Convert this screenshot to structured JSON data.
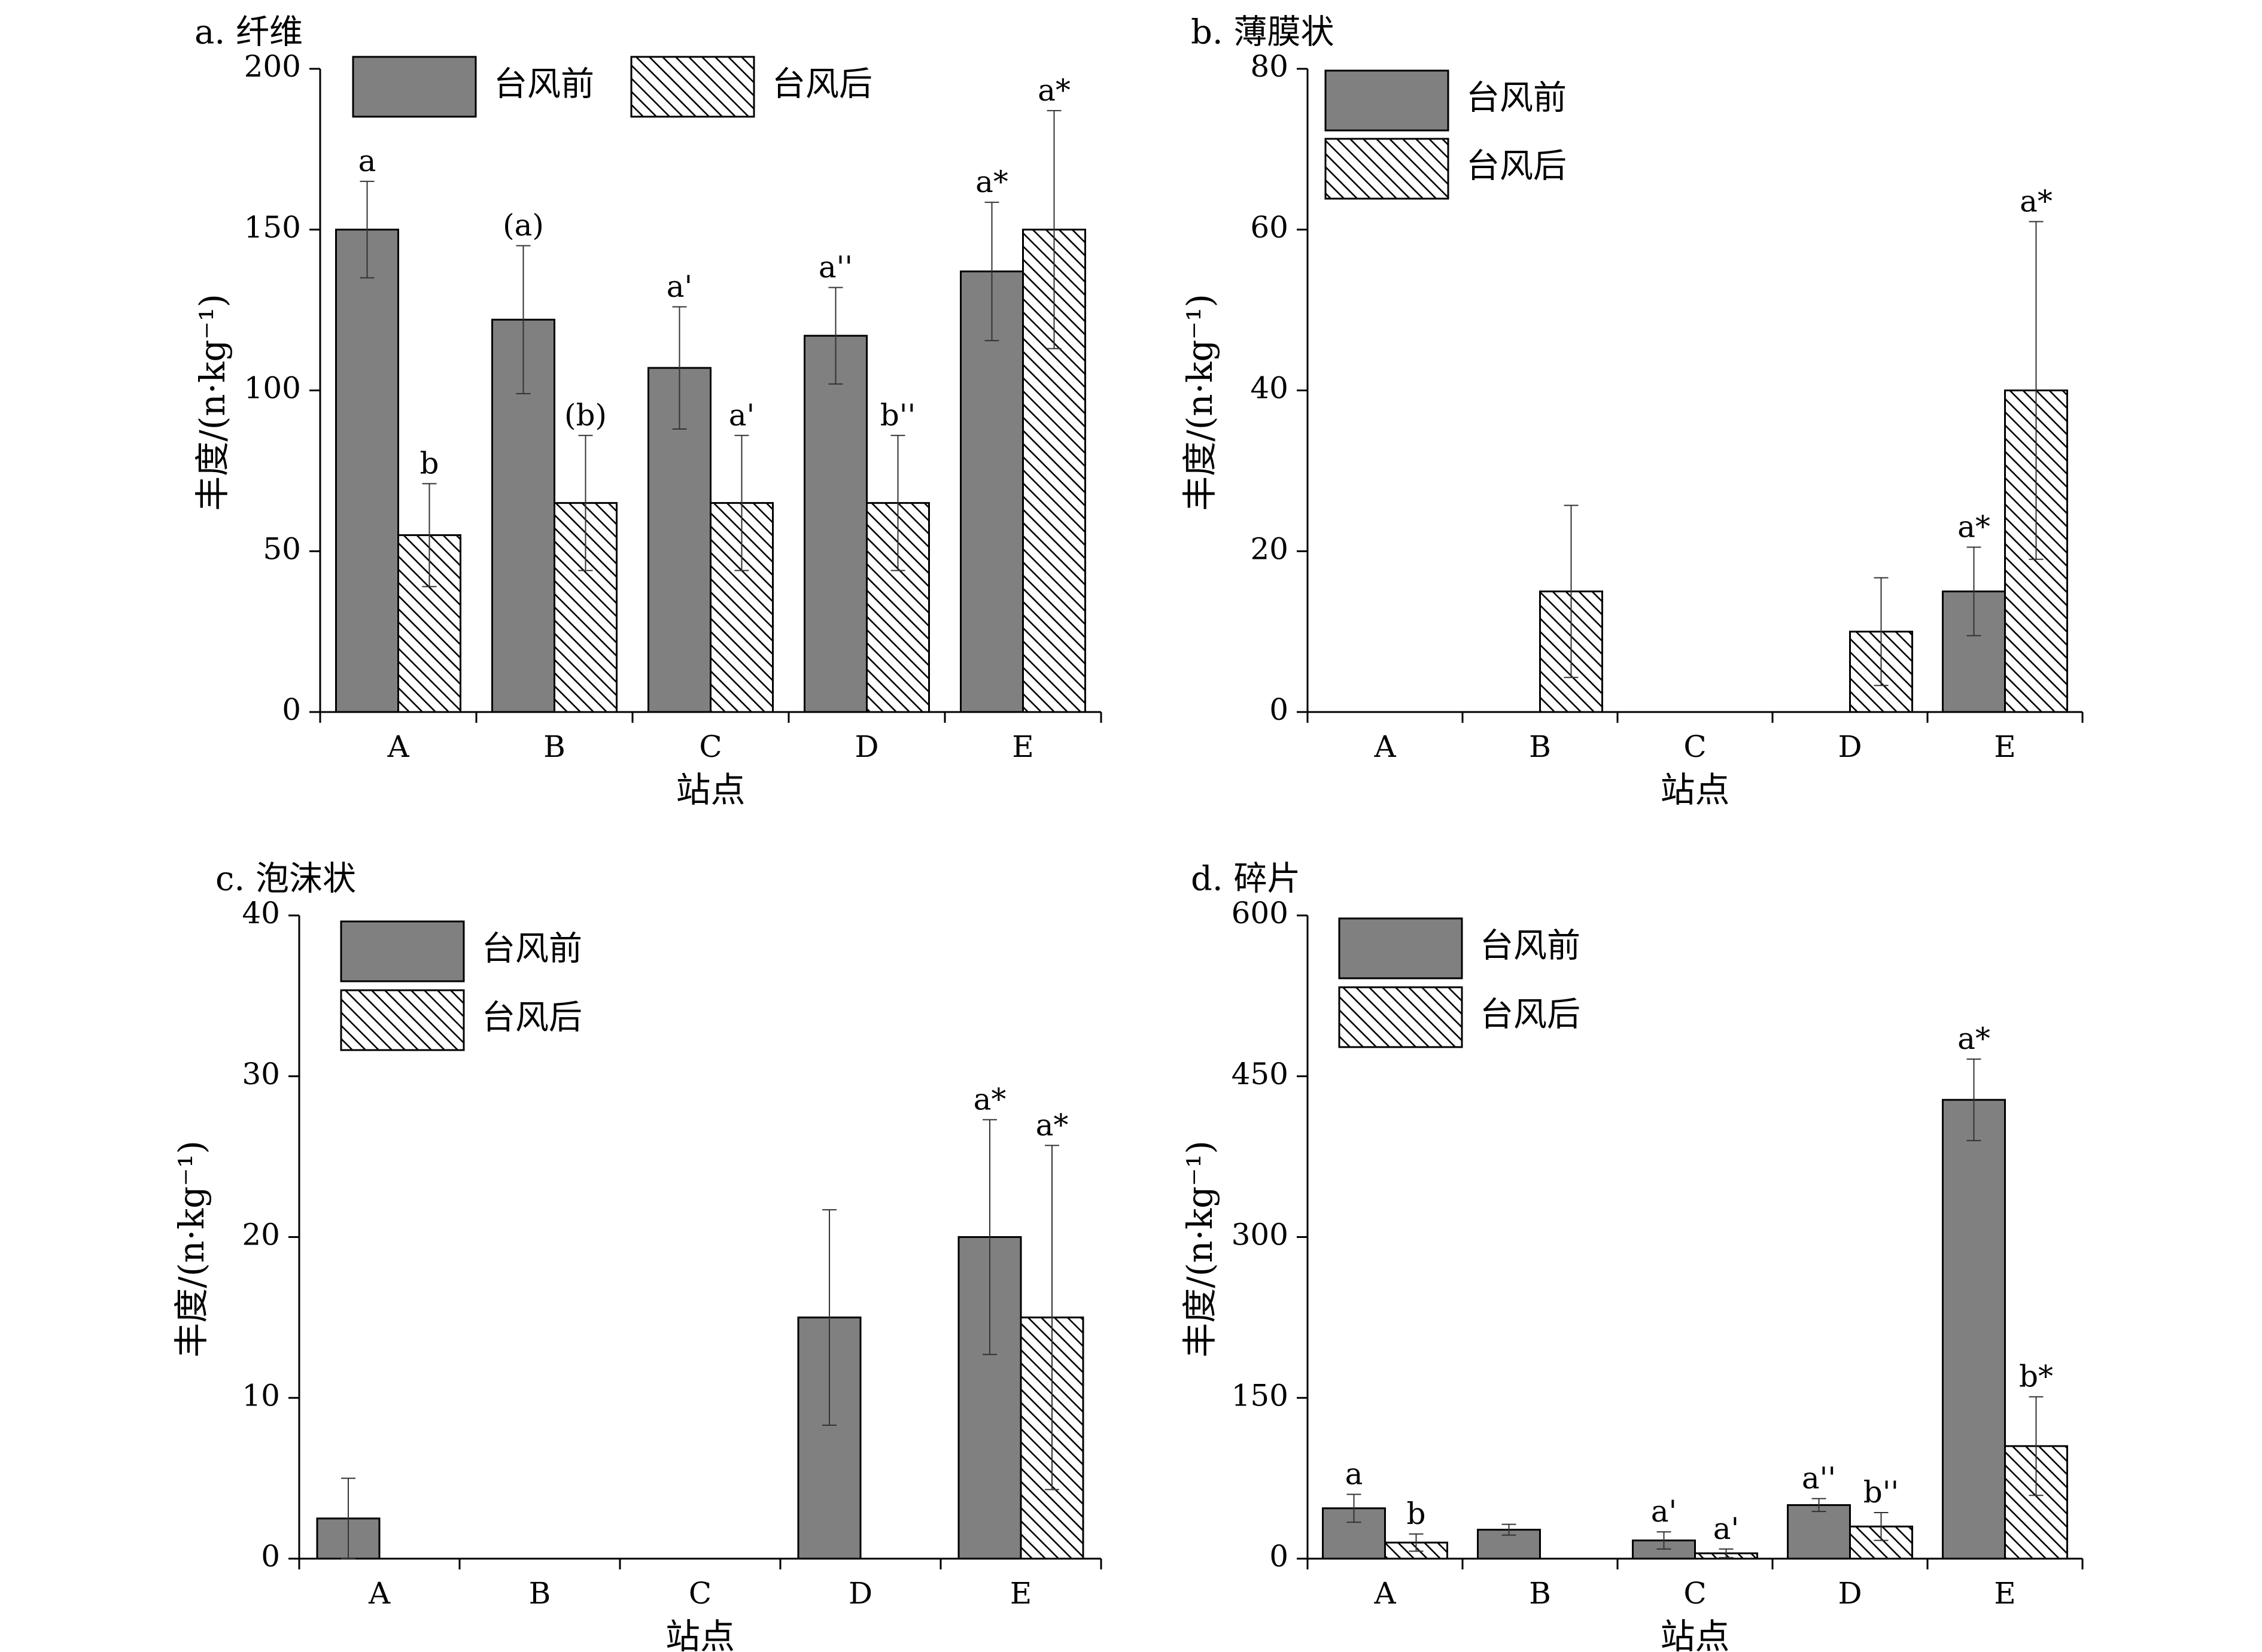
{
  "legend": {
    "before": "台风前",
    "after": "台风后"
  },
  "colors": {
    "before_fill": "#808080",
    "after_fill": "#ffffff",
    "stroke": "#000000"
  },
  "chart_data": [
    {
      "type": "bar",
      "title": "a. 纤维",
      "xlabel": "站点",
      "ylabel": "丰度/(n·kg⁻¹)",
      "categories": [
        "A",
        "B",
        "C",
        "D",
        "E"
      ],
      "ylim": [
        0,
        200
      ],
      "yticks": [
        0,
        50,
        100,
        150,
        200
      ],
      "legend_placement": "top, horizontal",
      "series": [
        {
          "name": "台风前",
          "values": [
            150,
            122,
            107,
            117,
            137
          ],
          "errors": [
            15,
            23,
            19,
            15,
            21.5
          ],
          "labels": [
            "a",
            "(a)",
            "a'",
            "a''",
            "a*"
          ]
        },
        {
          "name": "台风后",
          "values": [
            55,
            65,
            65,
            65,
            150
          ],
          "errors": [
            16,
            21,
            21,
            21,
            37
          ],
          "labels": [
            "b",
            "(b)",
            "a'",
            "b''",
            "a*"
          ]
        }
      ]
    },
    {
      "type": "bar",
      "title": "b. 薄膜状",
      "xlabel": "站点",
      "ylabel": "丰度/(n·kg⁻¹)",
      "categories": [
        "A",
        "B",
        "C",
        "D",
        "E"
      ],
      "ylim": [
        0,
        80
      ],
      "yticks": [
        0,
        20,
        40,
        60,
        80
      ],
      "legend_placement": "top-left, stacked",
      "series": [
        {
          "name": "台风前",
          "values": [
            0,
            0,
            0,
            0,
            15
          ],
          "errors": [
            0,
            0,
            0,
            0,
            5.5
          ],
          "labels": [
            "",
            "",
            "",
            "",
            "a*"
          ]
        },
        {
          "name": "台风后",
          "values": [
            0,
            15,
            0,
            10,
            40
          ],
          "errors": [
            0,
            10.7,
            0,
            6.7,
            21
          ],
          "labels": [
            "",
            "",
            "",
            "",
            "a*"
          ]
        }
      ]
    },
    {
      "type": "bar",
      "title": "c. 泡沫状",
      "xlabel": "站点",
      "ylabel": "丰度/(n·kg⁻¹)",
      "categories": [
        "A",
        "B",
        "C",
        "D",
        "E"
      ],
      "ylim": [
        0,
        40
      ],
      "yticks": [
        0,
        10,
        20,
        30,
        40
      ],
      "legend_placement": "top-left, stacked",
      "series": [
        {
          "name": "台风前",
          "values": [
            2.5,
            0,
            0,
            15,
            20
          ],
          "errors": [
            2.5,
            0,
            0,
            6.7,
            7.3
          ],
          "labels": [
            "",
            "",
            "",
            "",
            "a*"
          ]
        },
        {
          "name": "台风后",
          "values": [
            0,
            0,
            0,
            0,
            15
          ],
          "errors": [
            0,
            0,
            0,
            0,
            10.7
          ],
          "labels": [
            "",
            "",
            "",
            "",
            "a*"
          ]
        }
      ]
    },
    {
      "type": "bar",
      "title": "d. 碎片",
      "xlabel": "站点",
      "ylabel": "丰度/(n·kg⁻¹)",
      "categories": [
        "A",
        "B",
        "C",
        "D",
        "E"
      ],
      "ylim": [
        0,
        600
      ],
      "yticks": [
        0,
        150,
        300,
        450,
        600
      ],
      "legend_placement": "top-left, stacked",
      "series": [
        {
          "name": "台风前",
          "values": [
            47,
            27,
            17,
            50,
            428
          ],
          "errors": [
            13,
            5,
            8,
            6,
            38
          ],
          "labels": [
            "a",
            "",
            "a'",
            "a''",
            "a*"
          ]
        },
        {
          "name": "台风后",
          "values": [
            15,
            0,
            5,
            30,
            105
          ],
          "errors": [
            8,
            0,
            4,
            13,
            46
          ],
          "labels": [
            "b",
            "",
            "a'",
            "b''",
            "b*"
          ]
        }
      ]
    }
  ]
}
